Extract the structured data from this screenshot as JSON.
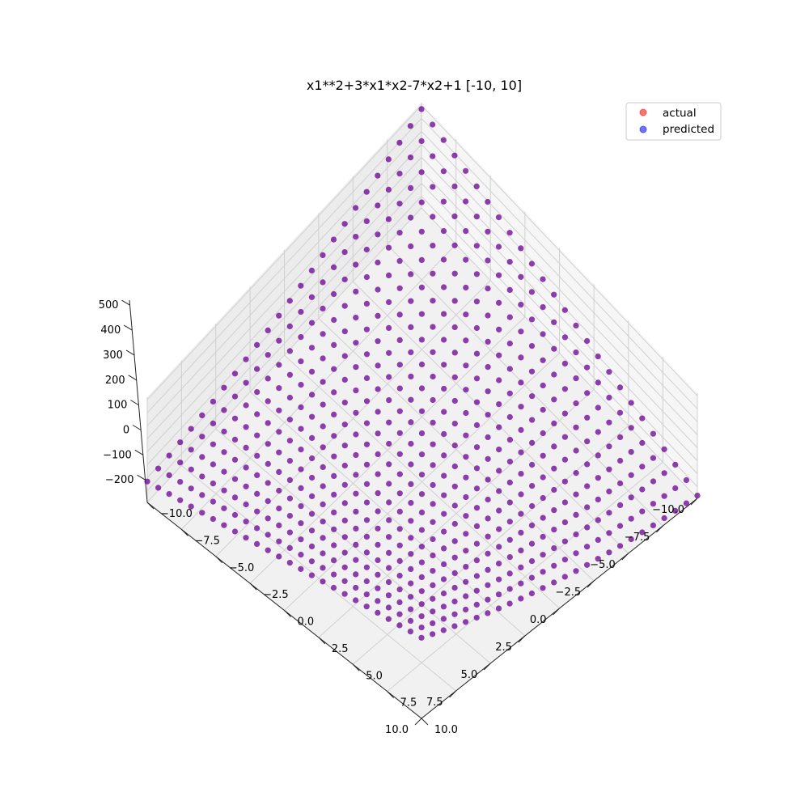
{
  "chart_data": {
    "type": "scatter",
    "projection": "3d",
    "title": "x1**2+3*x1*x2-7*x2+1 [-10, 10]",
    "function": "x1**2+3*x1*x2-7*x2+1",
    "x1": {
      "min": -10,
      "max": 10,
      "step": 0.8,
      "count": 26
    },
    "x2": {
      "min": -10,
      "max": 10,
      "step": 0.8,
      "count": 26
    },
    "xlim": [
      -10,
      10
    ],
    "ylim": [
      -10,
      10
    ],
    "zlim": [
      -290,
      520
    ],
    "x_ticks": [
      "−10.0",
      "−7.5",
      "−5.0",
      "−2.5",
      "0.0",
      "2.5",
      "5.0",
      "7.5",
      "10.0"
    ],
    "y_ticks": [
      "−10.0",
      "−7.5",
      "−5.0",
      "−2.5",
      "0.0",
      "2.5",
      "5.0",
      "7.5",
      "10.0"
    ],
    "z_ticks": [
      "−200",
      "−100",
      "0",
      "100",
      "200",
      "300",
      "400",
      "500"
    ],
    "grid": true,
    "legend_position": "top-right",
    "series": [
      {
        "name": "actual",
        "color": "#ff0000",
        "alpha": 0.55
      },
      {
        "name": "predicted",
        "color": "#0000ff",
        "alpha": 0.55
      }
    ]
  }
}
